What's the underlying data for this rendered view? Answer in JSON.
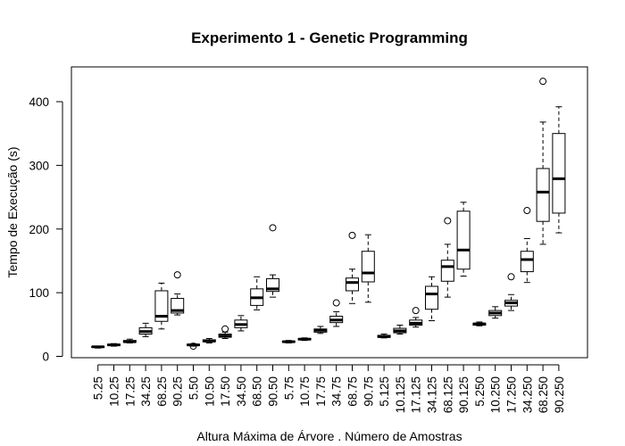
{
  "chart_data": {
    "type": "box",
    "title": "Experimento 1 - Genetic Programming",
    "xlabel": "Altura Máxima de Árvore . Número de Amostras",
    "ylabel": "Tempo de Execução (s)",
    "ylim": [
      -5,
      445
    ],
    "yticks": [
      0,
      100,
      200,
      300,
      400
    ],
    "categories": [
      "5.25",
      "10.25",
      "17.25",
      "34.25",
      "68.25",
      "90.25",
      "5.50",
      "10.50",
      "17.50",
      "34.50",
      "68.50",
      "90.50",
      "5.75",
      "10.75",
      "17.75",
      "34.75",
      "68.75",
      "90.75",
      "5.125",
      "10.125",
      "17.125",
      "34.125",
      "68.125",
      "90.125",
      "5.250",
      "10.250",
      "17.250",
      "34.250",
      "68.250",
      "90.250"
    ],
    "boxes": [
      {
        "min": 13,
        "q1": 14,
        "median": 15,
        "q3": 15.5,
        "max": 16,
        "outliers": []
      },
      {
        "min": 16,
        "q1": 17,
        "median": 18,
        "q3": 19,
        "max": 20,
        "outliers": []
      },
      {
        "min": 21,
        "q1": 22,
        "median": 23,
        "q3": 25,
        "max": 27,
        "outliers": []
      },
      {
        "min": 31,
        "q1": 35,
        "median": 39,
        "q3": 45,
        "max": 52,
        "outliers": []
      },
      {
        "min": 43,
        "q1": 55,
        "median": 63,
        "q3": 103,
        "max": 115,
        "outliers": []
      },
      {
        "min": 65,
        "q1": 68,
        "median": 72,
        "q3": 91,
        "max": 98,
        "outliers": [
          128
        ]
      },
      {
        "min": 16,
        "q1": 17,
        "median": 18,
        "q3": 19,
        "max": 20,
        "outliers": [
          16
        ]
      },
      {
        "min": 21,
        "q1": 23,
        "median": 24,
        "q3": 26,
        "max": 28,
        "outliers": []
      },
      {
        "min": 28,
        "q1": 30,
        "median": 32,
        "q3": 35,
        "max": 38,
        "outliers": [
          43
        ]
      },
      {
        "min": 40,
        "q1": 45,
        "median": 50,
        "q3": 57,
        "max": 64,
        "outliers": []
      },
      {
        "min": 73,
        "q1": 80,
        "median": 92,
        "q3": 106,
        "max": 125,
        "outliers": []
      },
      {
        "min": 93,
        "q1": 102,
        "median": 106,
        "q3": 122,
        "max": 128,
        "outliers": [
          202
        ]
      },
      {
        "min": 21,
        "q1": 22,
        "median": 23,
        "q3": 24,
        "max": 25,
        "outliers": []
      },
      {
        "min": 25,
        "q1": 26,
        "median": 27,
        "q3": 28,
        "max": 29,
        "outliers": []
      },
      {
        "min": 36,
        "q1": 38,
        "median": 41,
        "q3": 43,
        "max": 47,
        "outliers": []
      },
      {
        "min": 47,
        "q1": 53,
        "median": 57,
        "q3": 63,
        "max": 70,
        "outliers": [
          84
        ]
      },
      {
        "min": 83,
        "q1": 103,
        "median": 116,
        "q3": 123,
        "max": 137,
        "outliers": [
          190
        ]
      },
      {
        "min": 85,
        "q1": 117,
        "median": 131,
        "q3": 165,
        "max": 191,
        "outliers": []
      },
      {
        "min": 29,
        "q1": 30,
        "median": 31,
        "q3": 33,
        "max": 35,
        "outliers": []
      },
      {
        "min": 35,
        "q1": 37,
        "median": 40,
        "q3": 44,
        "max": 49,
        "outliers": []
      },
      {
        "min": 46,
        "q1": 49,
        "median": 52,
        "q3": 57,
        "max": 61,
        "outliers": [
          72
        ]
      },
      {
        "min": 56,
        "q1": 74,
        "median": 98,
        "q3": 110,
        "max": 125,
        "outliers": []
      },
      {
        "min": 93,
        "q1": 118,
        "median": 141,
        "q3": 151,
        "max": 176,
        "outliers": [
          213
        ]
      },
      {
        "min": 126,
        "q1": 137,
        "median": 167,
        "q3": 228,
        "max": 242,
        "outliers": []
      },
      {
        "min": 48,
        "q1": 49,
        "median": 51,
        "q3": 52,
        "max": 54,
        "outliers": []
      },
      {
        "min": 60,
        "q1": 64,
        "median": 68,
        "q3": 72,
        "max": 78,
        "outliers": []
      },
      {
        "min": 72,
        "q1": 79,
        "median": 84,
        "q3": 88,
        "max": 97,
        "outliers": [
          125
        ]
      },
      {
        "min": 116,
        "q1": 133,
        "median": 152,
        "q3": 165,
        "max": 185,
        "outliers": [
          229
        ]
      },
      {
        "min": 176,
        "q1": 212,
        "median": 258,
        "q3": 295,
        "max": 368,
        "outliers": [
          432
        ]
      },
      {
        "min": 194,
        "q1": 225,
        "median": 279,
        "q3": 350,
        "max": 392,
        "outliers": []
      }
    ]
  }
}
